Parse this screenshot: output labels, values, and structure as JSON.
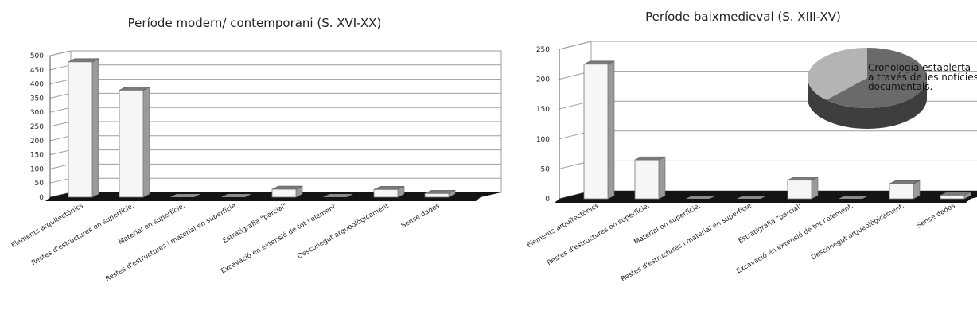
{
  "chart_data": [
    {
      "type": "bar",
      "title": "Període modern/ contemporani (S. XVI-XX)",
      "categories": [
        "Elements arquitectònics",
        "Restes d'estructures en superfície.",
        "Material en superfície.",
        "Restes d'estructures i material en superfície",
        "Estratigrafia \"parcial\"",
        "Excavació en extensió de tot l'element.",
        "Desconegut arqueològicament",
        "Sense dades"
      ],
      "values": [
        478,
        378,
        0,
        0,
        28,
        0,
        27,
        13
      ],
      "ylim": [
        0,
        500
      ],
      "yticks": [
        "0",
        "50",
        "100",
        "150",
        "200",
        "250",
        "300",
        "350",
        "400",
        "450",
        "500"
      ],
      "grid": true
    },
    {
      "type": "bar",
      "title": "Període baixmedieval (S. XIII-XV)",
      "categories": [
        "Elements arquitectònics",
        "Restes d'estructures en superfície.",
        "Material en superfície.",
        "Restes d'estructures i material en superfície",
        "Estratigrafia \"parcial\"",
        "Excavació en extensió de tot l'element.",
        "Desconegut arqueològicament.",
        "Sense dades"
      ],
      "values": [
        225,
        65,
        0,
        0,
        31,
        0,
        25,
        6
      ],
      "ylim": [
        0,
        250
      ],
      "yticks": [
        "0",
        "50",
        "100",
        "150",
        "200",
        "250"
      ],
      "grid": true,
      "inset_pie": {
        "slices": [
          0.62,
          0.38
        ],
        "colors": [
          "#6a6a6a",
          "#b4b4b4"
        ],
        "annotation": [
          "Cronologia establerta",
          "a través de les notícies",
          "documentals."
        ]
      }
    }
  ],
  "colors": {
    "bar_face": "#f6f6f6",
    "bar_side": "#9a9a9a",
    "bar_top": "#7a7a7a",
    "floor": "#141414",
    "grid": "#9e9e9e"
  }
}
